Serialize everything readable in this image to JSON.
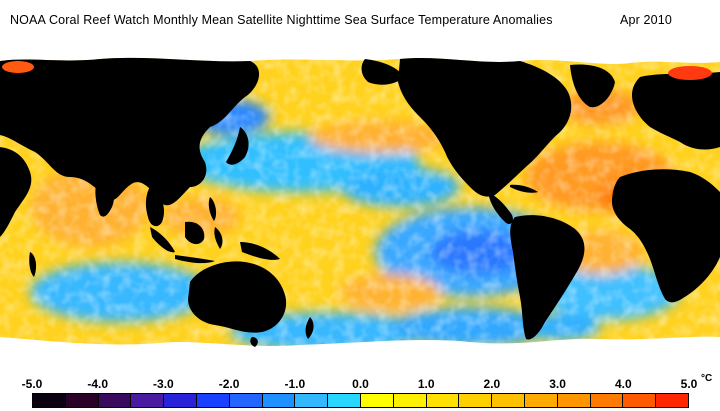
{
  "title": {
    "text": "NOAA Coral Reef Watch Monthly Mean Satellite Nighttime Sea Surface Temperature Anomalies",
    "date": "Apr 2010"
  },
  "colorbar": {
    "unit": "°C",
    "tick_labels": [
      "-5.0",
      "-4.0",
      "-3.0",
      "-2.0",
      "-1.0",
      "0.0",
      "1.0",
      "2.0",
      "3.0",
      "4.0",
      "5.0"
    ],
    "colors": [
      "#0a0010",
      "#2a0028",
      "#3a0a5e",
      "#4a1aa0",
      "#2a22d8",
      "#1a40ff",
      "#2266ff",
      "#1e90ff",
      "#33b8ff",
      "#28d6ff",
      "#ffff00",
      "#fff000",
      "#ffe000",
      "#ffd000",
      "#ffc000",
      "#ffaa00",
      "#ff9500",
      "#ff7a00",
      "#ff5a00",
      "#ff2600"
    ]
  },
  "map_colors": {
    "land": "#000000",
    "ice": "#ffffff",
    "ocean_neutral": "#ffd820",
    "warm": "#ffa830",
    "hot": "#ff6a10",
    "cool": "#33c8ff",
    "cold": "#2a70ff"
  }
}
